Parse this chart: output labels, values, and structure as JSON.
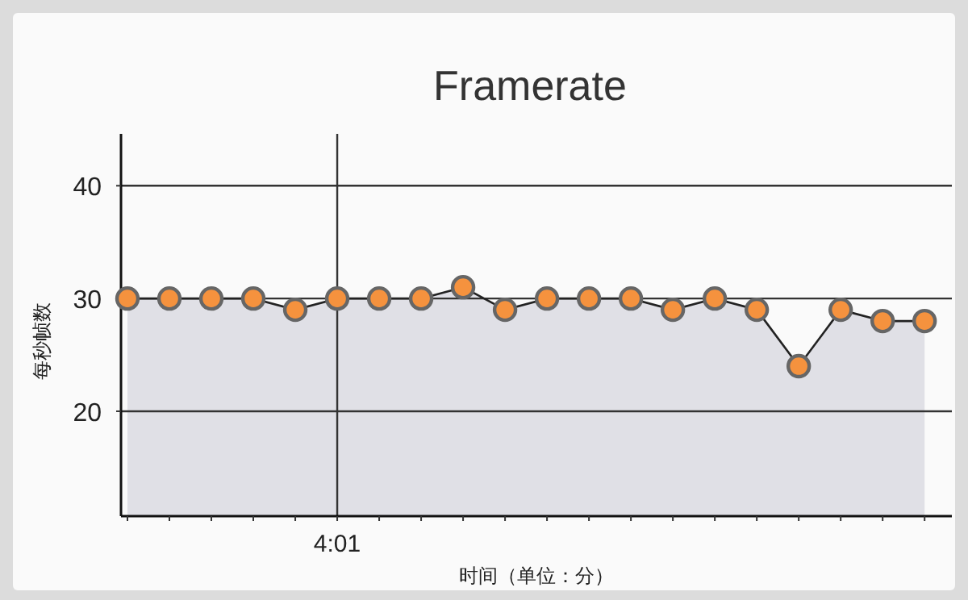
{
  "chart_data": {
    "type": "area",
    "title": "Framerate",
    "xlabel": "时间（单位：分）",
    "ylabel": "每秒帧数",
    "categories": [
      null,
      null,
      null,
      null,
      null,
      "4:01",
      null,
      null,
      null,
      null,
      null,
      null,
      null,
      null,
      null,
      null,
      null,
      null,
      null,
      null
    ],
    "series": [
      {
        "color": "#f5923e",
        "values": [
          30,
          30,
          30,
          30,
          29,
          30,
          30,
          30,
          31,
          29,
          30,
          30,
          30,
          29,
          30,
          29,
          24,
          29,
          28,
          28
        ]
      }
    ],
    "ylim": [
      10.7,
      44.6
    ],
    "yticks": [
      20,
      30,
      40
    ],
    "ref_lines": [
      {
        "axis": "x",
        "value": "4:01",
        "color": "#333333"
      }
    ],
    "grid": "y",
    "marker": "circle",
    "line_style": "solid"
  }
}
